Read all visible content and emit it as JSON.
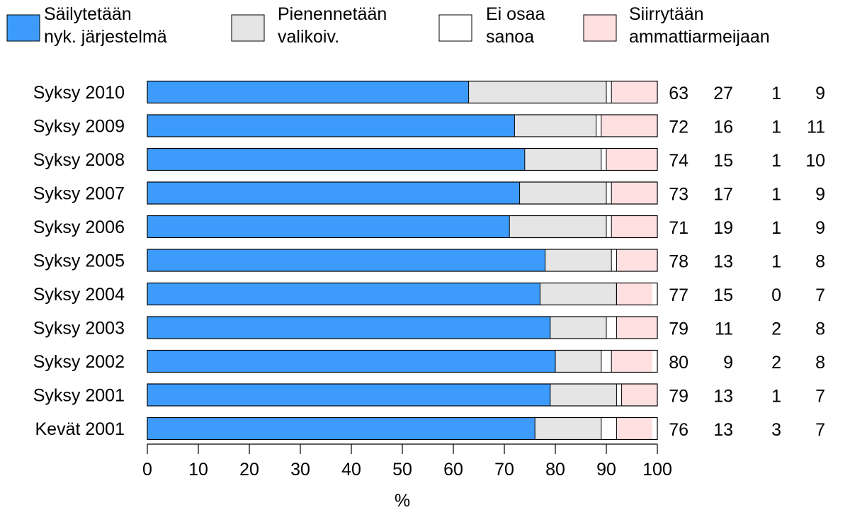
{
  "chart_data": {
    "type": "bar",
    "stacked": true,
    "orientation": "horizontal",
    "categories": [
      "Syksy 2010",
      "Syksy 2009",
      "Syksy 2008",
      "Syksy 2007",
      "Syksy 2006",
      "Syksy 2005",
      "Syksy 2004",
      "Syksy 2003",
      "Syksy 2002",
      "Syksy 2001",
      "Kevät 2001"
    ],
    "series": [
      {
        "name": "Säilytetään nyk. järjestelmä",
        "legend_lines": [
          "Säilytetään",
          "nyk. järjestelmä"
        ],
        "color": "#3d9bfb",
        "values": [
          63,
          72,
          74,
          73,
          71,
          78,
          77,
          79,
          80,
          79,
          76
        ]
      },
      {
        "name": "Pienennetään valikoiv.",
        "legend_lines": [
          "Pienennetään",
          "valikoiv."
        ],
        "color": "#e5e5e5",
        "values": [
          27,
          16,
          15,
          17,
          19,
          13,
          15,
          11,
          9,
          13,
          13
        ]
      },
      {
        "name": "Ei osaa sanoa",
        "legend_lines": [
          "Ei osaa",
          "sanoa"
        ],
        "color": "#ffffff",
        "values": [
          1,
          1,
          1,
          1,
          1,
          1,
          0,
          2,
          2,
          1,
          3
        ]
      },
      {
        "name": "Siirrytään ammattiarmeijaan",
        "legend_lines": [
          "Siirrytään",
          "ammattiarmeijaan"
        ],
        "color": "#ffe0e0",
        "values": [
          9,
          11,
          10,
          9,
          9,
          8,
          7,
          8,
          8,
          7,
          7
        ]
      }
    ],
    "xlabel": "%",
    "ylabel": "",
    "xlim": [
      0,
      100
    ],
    "xticks": [
      "0",
      "10",
      "20",
      "30",
      "40",
      "50",
      "60",
      "70",
      "80",
      "90",
      "100"
    ],
    "legend_position": "top",
    "grid": false
  }
}
